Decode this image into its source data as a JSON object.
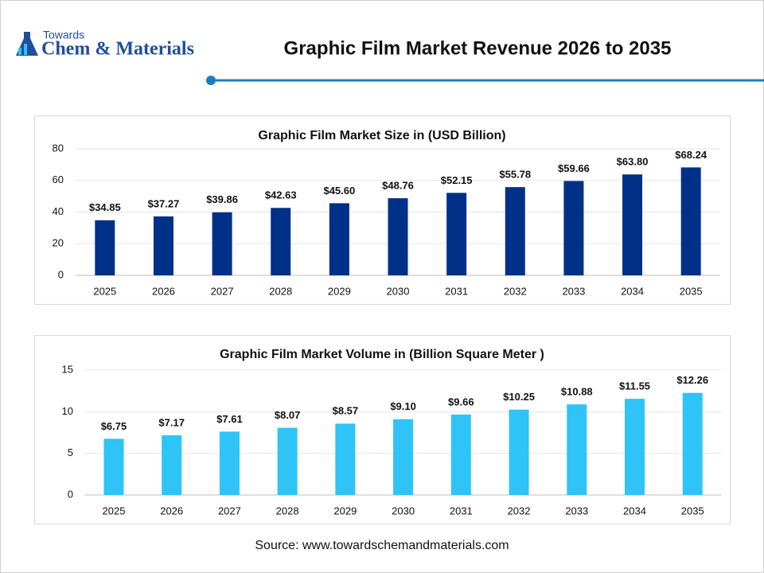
{
  "logo": {
    "small": "Towards",
    "main": "Chem & Materials"
  },
  "header": {
    "title": "Graphic Film Market Revenue 2026 to 2035"
  },
  "source": "Source: www.towardschemandmaterials.com",
  "chart_data": [
    {
      "type": "bar",
      "title": "Graphic Film Market Size in (USD Billion)",
      "categories": [
        "2025",
        "2026",
        "2027",
        "2028",
        "2029",
        "2030",
        "2031",
        "2032",
        "2033",
        "2034",
        "2035"
      ],
      "values": [
        34.85,
        37.27,
        39.86,
        42.63,
        45.6,
        48.76,
        52.15,
        55.78,
        59.66,
        63.8,
        68.24
      ],
      "value_labels": [
        "$34.85",
        "$37.27",
        "$39.86",
        "$42.63",
        "$45.60",
        "$48.76",
        "$52.15",
        "$55.78",
        "$59.66",
        "$63.80",
        "$68.24"
      ],
      "color": "#003087",
      "ylim": [
        0,
        80
      ],
      "yticks": [
        0,
        20,
        40,
        60,
        80
      ],
      "grid": true
    },
    {
      "type": "bar",
      "title": "Graphic Film Market Volume in (Billion Square Meter )",
      "categories": [
        "2025",
        "2026",
        "2027",
        "2028",
        "2029",
        "2030",
        "2031",
        "2032",
        "2033",
        "2034",
        "2035"
      ],
      "values": [
        6.75,
        7.17,
        7.61,
        8.07,
        8.57,
        9.1,
        9.66,
        10.25,
        10.88,
        11.55,
        12.26
      ],
      "value_labels": [
        "$6.75",
        "$7.17",
        "$7.61",
        "$8.07",
        "$8.57",
        "$9.10",
        "$9.66",
        "$10.25",
        "$10.88",
        "$11.55",
        "$12.26"
      ],
      "color": "#2ec4f7",
      "ylim": [
        0,
        15
      ],
      "yticks": [
        0,
        5,
        10,
        15
      ],
      "grid": true
    }
  ]
}
